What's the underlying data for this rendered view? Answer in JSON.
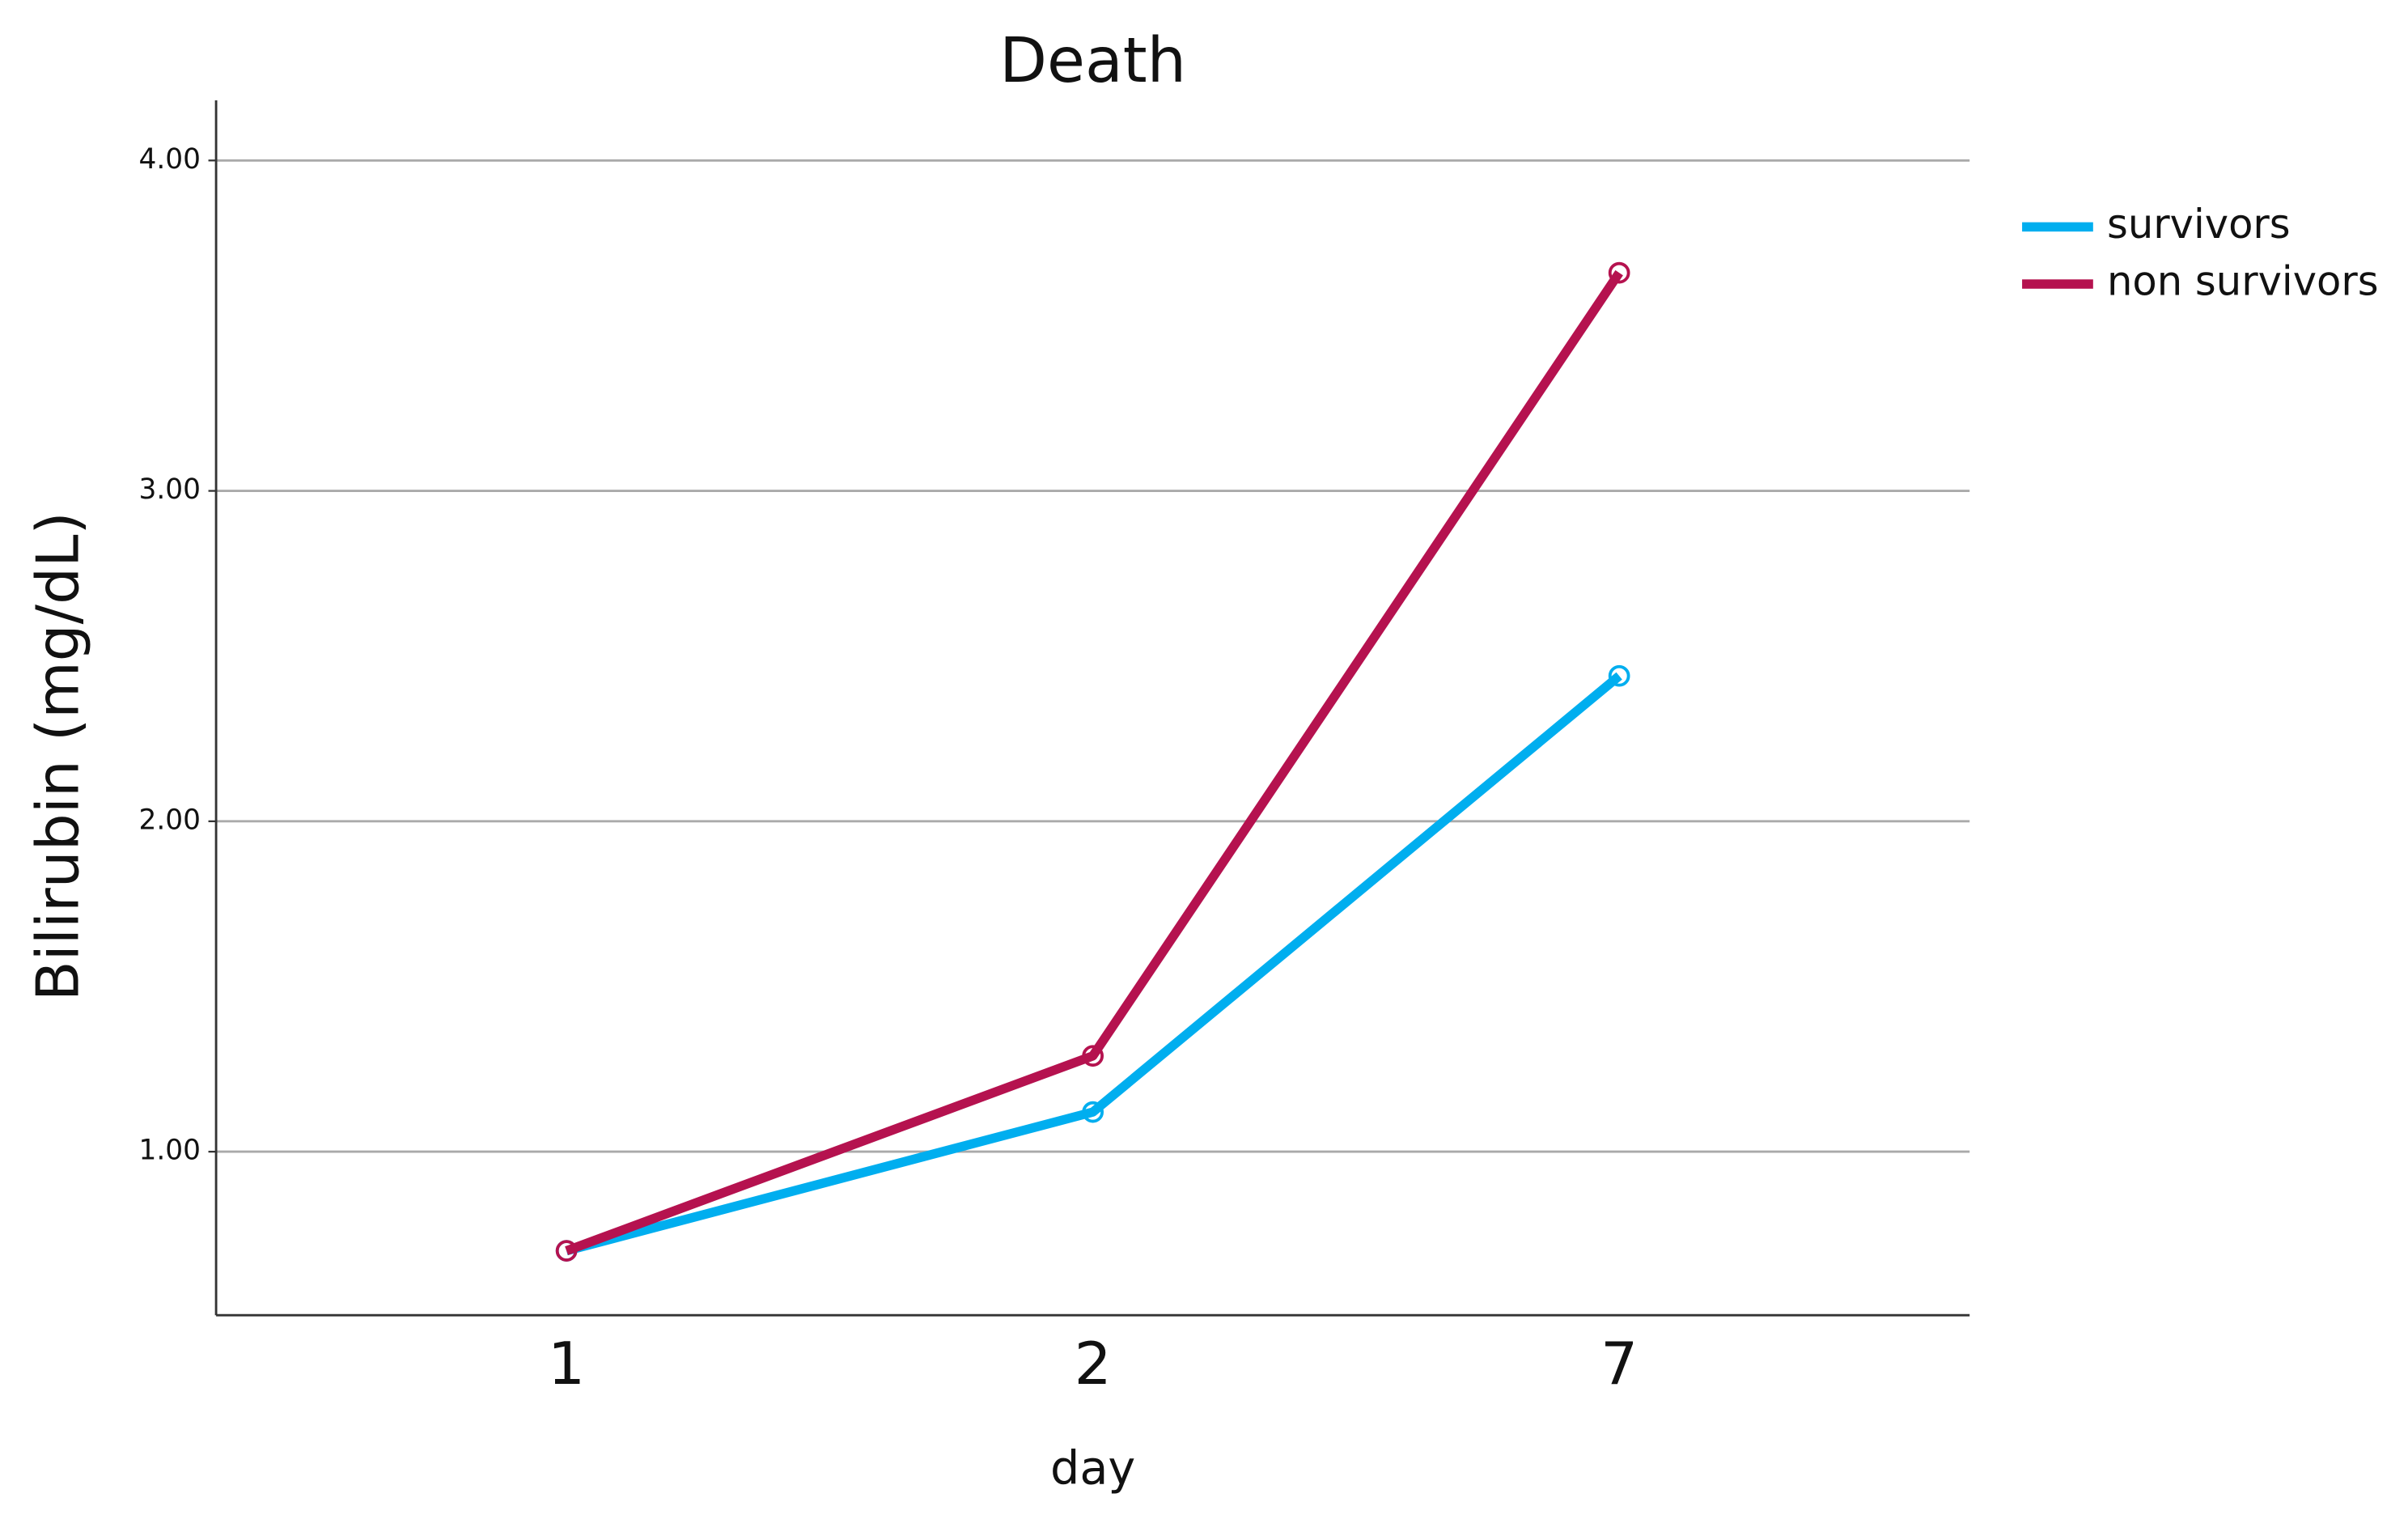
{
  "chart_data": {
    "type": "line",
    "title": "Death",
    "x_label": "day",
    "y_label": "Bilirubin (mg/dL)",
    "categories": [
      "1",
      "2",
      "7"
    ],
    "series": [
      {
        "name": "survivors",
        "color": "#00aeef",
        "values": [
          0.7,
          1.12,
          2.44
        ]
      },
      {
        "name": "non survivors",
        "color": "#b5124f",
        "values": [
          0.7,
          1.29,
          3.66
        ]
      }
    ],
    "ylim": [
      0.505,
      4.182
    ],
    "yticks": [
      {
        "value": 1,
        "label": "1.00"
      },
      {
        "value": 2,
        "label": "2.00"
      },
      {
        "value": 3,
        "label": "3.00"
      },
      {
        "value": 4,
        "label": "4.00"
      }
    ],
    "grid": true,
    "legend": "right"
  }
}
